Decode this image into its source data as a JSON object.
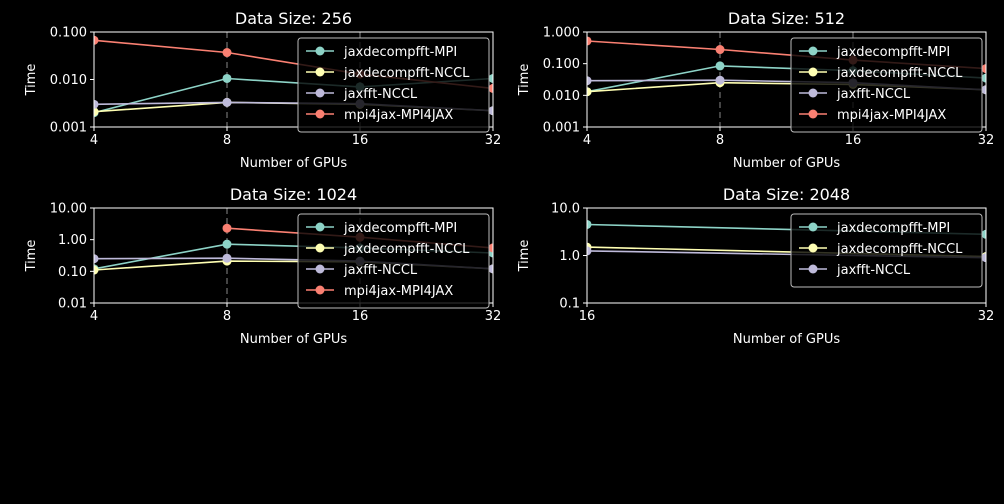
{
  "colors": {
    "background": "#000000",
    "foreground": "#ffffff",
    "grid": "#555555",
    "legend_bg": "#000000",
    "legend_edge": "#bbbbbb"
  },
  "chart_data": [
    {
      "type": "line",
      "title": "Data Size: 256",
      "xlabel": "Number of GPUs",
      "ylabel": "Time",
      "x_scale": "log2",
      "y_scale": "log",
      "x_ticks": [
        4,
        8,
        16,
        32
      ],
      "x_tick_labels": [
        "4",
        "8",
        "16",
        "32"
      ],
      "xlim": [
        4,
        32
      ],
      "y_ticks": [
        0.001,
        0.01,
        0.1
      ],
      "y_tick_labels": [
        "0.001",
        "0.010",
        "0.100"
      ],
      "ylim": [
        0.001,
        0.1
      ],
      "grid": "x-dashed",
      "legend_position": "upper-right",
      "series": [
        {
          "name": "jaxdecompfft-MPI",
          "color": "#8dd3c7",
          "x": [
            4,
            8,
            16,
            32
          ],
          "y": [
            0.002,
            0.0105,
            0.007,
            0.0105
          ]
        },
        {
          "name": "jaxdecompfft-NCCL",
          "color": "#ffffb3",
          "x": [
            4,
            8,
            16,
            32
          ],
          "y": [
            0.0021,
            0.0033,
            0.003,
            0.0022
          ]
        },
        {
          "name": "jaxfft-NCCL",
          "color": "#bebada",
          "x": [
            4,
            8,
            16,
            32
          ],
          "y": [
            0.003,
            0.0033,
            0.0031,
            0.0022
          ]
        },
        {
          "name": "mpi4jax-MPI4JAX",
          "color": "#fa8072",
          "x": [
            4,
            8,
            16,
            32
          ],
          "y": [
            0.067,
            0.037,
            0.013,
            0.0065
          ]
        }
      ]
    },
    {
      "type": "line",
      "title": "Data Size: 512",
      "xlabel": "Number of GPUs",
      "ylabel": "Time",
      "x_scale": "log2",
      "y_scale": "log",
      "x_ticks": [
        4,
        8,
        16,
        32
      ],
      "x_tick_labels": [
        "4",
        "8",
        "16",
        "32"
      ],
      "xlim": [
        4,
        32
      ],
      "y_ticks": [
        0.001,
        0.01,
        0.1,
        1
      ],
      "y_tick_labels": [
        "0.001",
        "0.010",
        "0.100",
        "1.000"
      ],
      "ylim": [
        0.001,
        1
      ],
      "grid": "x-dashed",
      "legend_position": "upper-right",
      "series": [
        {
          "name": "jaxdecompfft-MPI",
          "color": "#8dd3c7",
          "x": [
            4,
            8,
            16,
            32
          ],
          "y": [
            0.013,
            0.085,
            0.06,
            0.035
          ]
        },
        {
          "name": "jaxdecompfft-NCCL",
          "color": "#ffffb3",
          "x": [
            4,
            8,
            16,
            32
          ],
          "y": [
            0.013,
            0.025,
            0.022,
            0.015
          ]
        },
        {
          "name": "jaxfft-NCCL",
          "color": "#bebada",
          "x": [
            4,
            8,
            16,
            32
          ],
          "y": [
            0.029,
            0.03,
            0.025,
            0.015
          ]
        },
        {
          "name": "mpi4jax-MPI4JAX",
          "color": "#fa8072",
          "x": [
            4,
            8,
            16,
            32
          ],
          "y": [
            0.52,
            0.28,
            0.13,
            0.07
          ]
        }
      ]
    },
    {
      "type": "line",
      "title": "Data Size: 1024",
      "xlabel": "Number of GPUs",
      "ylabel": "Time",
      "x_scale": "log2",
      "y_scale": "log",
      "x_ticks": [
        4,
        8,
        16,
        32
      ],
      "x_tick_labels": [
        "4",
        "8",
        "16",
        "32"
      ],
      "xlim": [
        4,
        32
      ],
      "y_ticks": [
        0.01,
        0.1,
        1,
        10
      ],
      "y_tick_labels": [
        "0.01",
        "0.10",
        "1.00",
        "10.00"
      ],
      "ylim": [
        0.01,
        10
      ],
      "grid": "x-dashed",
      "legend_position": "upper-right",
      "series": [
        {
          "name": "jaxdecompfft-MPI",
          "color": "#8dd3c7",
          "x": [
            4,
            8,
            16,
            32
          ],
          "y": [
            0.12,
            0.72,
            0.55,
            0.38
          ]
        },
        {
          "name": "jaxdecompfft-NCCL",
          "color": "#ffffb3",
          "x": [
            4,
            8,
            16,
            32
          ],
          "y": [
            0.11,
            0.21,
            0.2,
            0.12
          ]
        },
        {
          "name": "jaxfft-NCCL",
          "color": "#bebada",
          "x": [
            4,
            8,
            16,
            32
          ],
          "y": [
            0.25,
            0.26,
            0.21,
            0.12
          ]
        },
        {
          "name": "mpi4jax-MPI4JAX",
          "color": "#fa8072",
          "x": [
            8,
            16,
            32
          ],
          "y": [
            2.3,
            1.2,
            0.55
          ]
        }
      ]
    },
    {
      "type": "line",
      "title": "Data Size: 2048",
      "xlabel": "Number of GPUs",
      "ylabel": "Time",
      "x_scale": "log2",
      "y_scale": "log",
      "x_ticks": [
        16,
        32
      ],
      "x_tick_labels": [
        "16",
        "32"
      ],
      "xlim": [
        16,
        32
      ],
      "y_ticks": [
        0.1,
        1,
        10
      ],
      "y_tick_labels": [
        "0.1",
        "1.0",
        "10.0"
      ],
      "ylim": [
        0.1,
        10
      ],
      "grid": "none",
      "legend_position": "upper-right",
      "series": [
        {
          "name": "jaxdecompfft-MPI",
          "color": "#8dd3c7",
          "x": [
            16,
            32
          ],
          "y": [
            4.5,
            2.8
          ]
        },
        {
          "name": "jaxdecompfft-NCCL",
          "color": "#ffffb3",
          "x": [
            16,
            32
          ],
          "y": [
            1.5,
            0.95
          ]
        },
        {
          "name": "jaxfft-NCCL",
          "color": "#bebada",
          "x": [
            16,
            32
          ],
          "y": [
            1.25,
            0.9
          ]
        }
      ]
    }
  ]
}
